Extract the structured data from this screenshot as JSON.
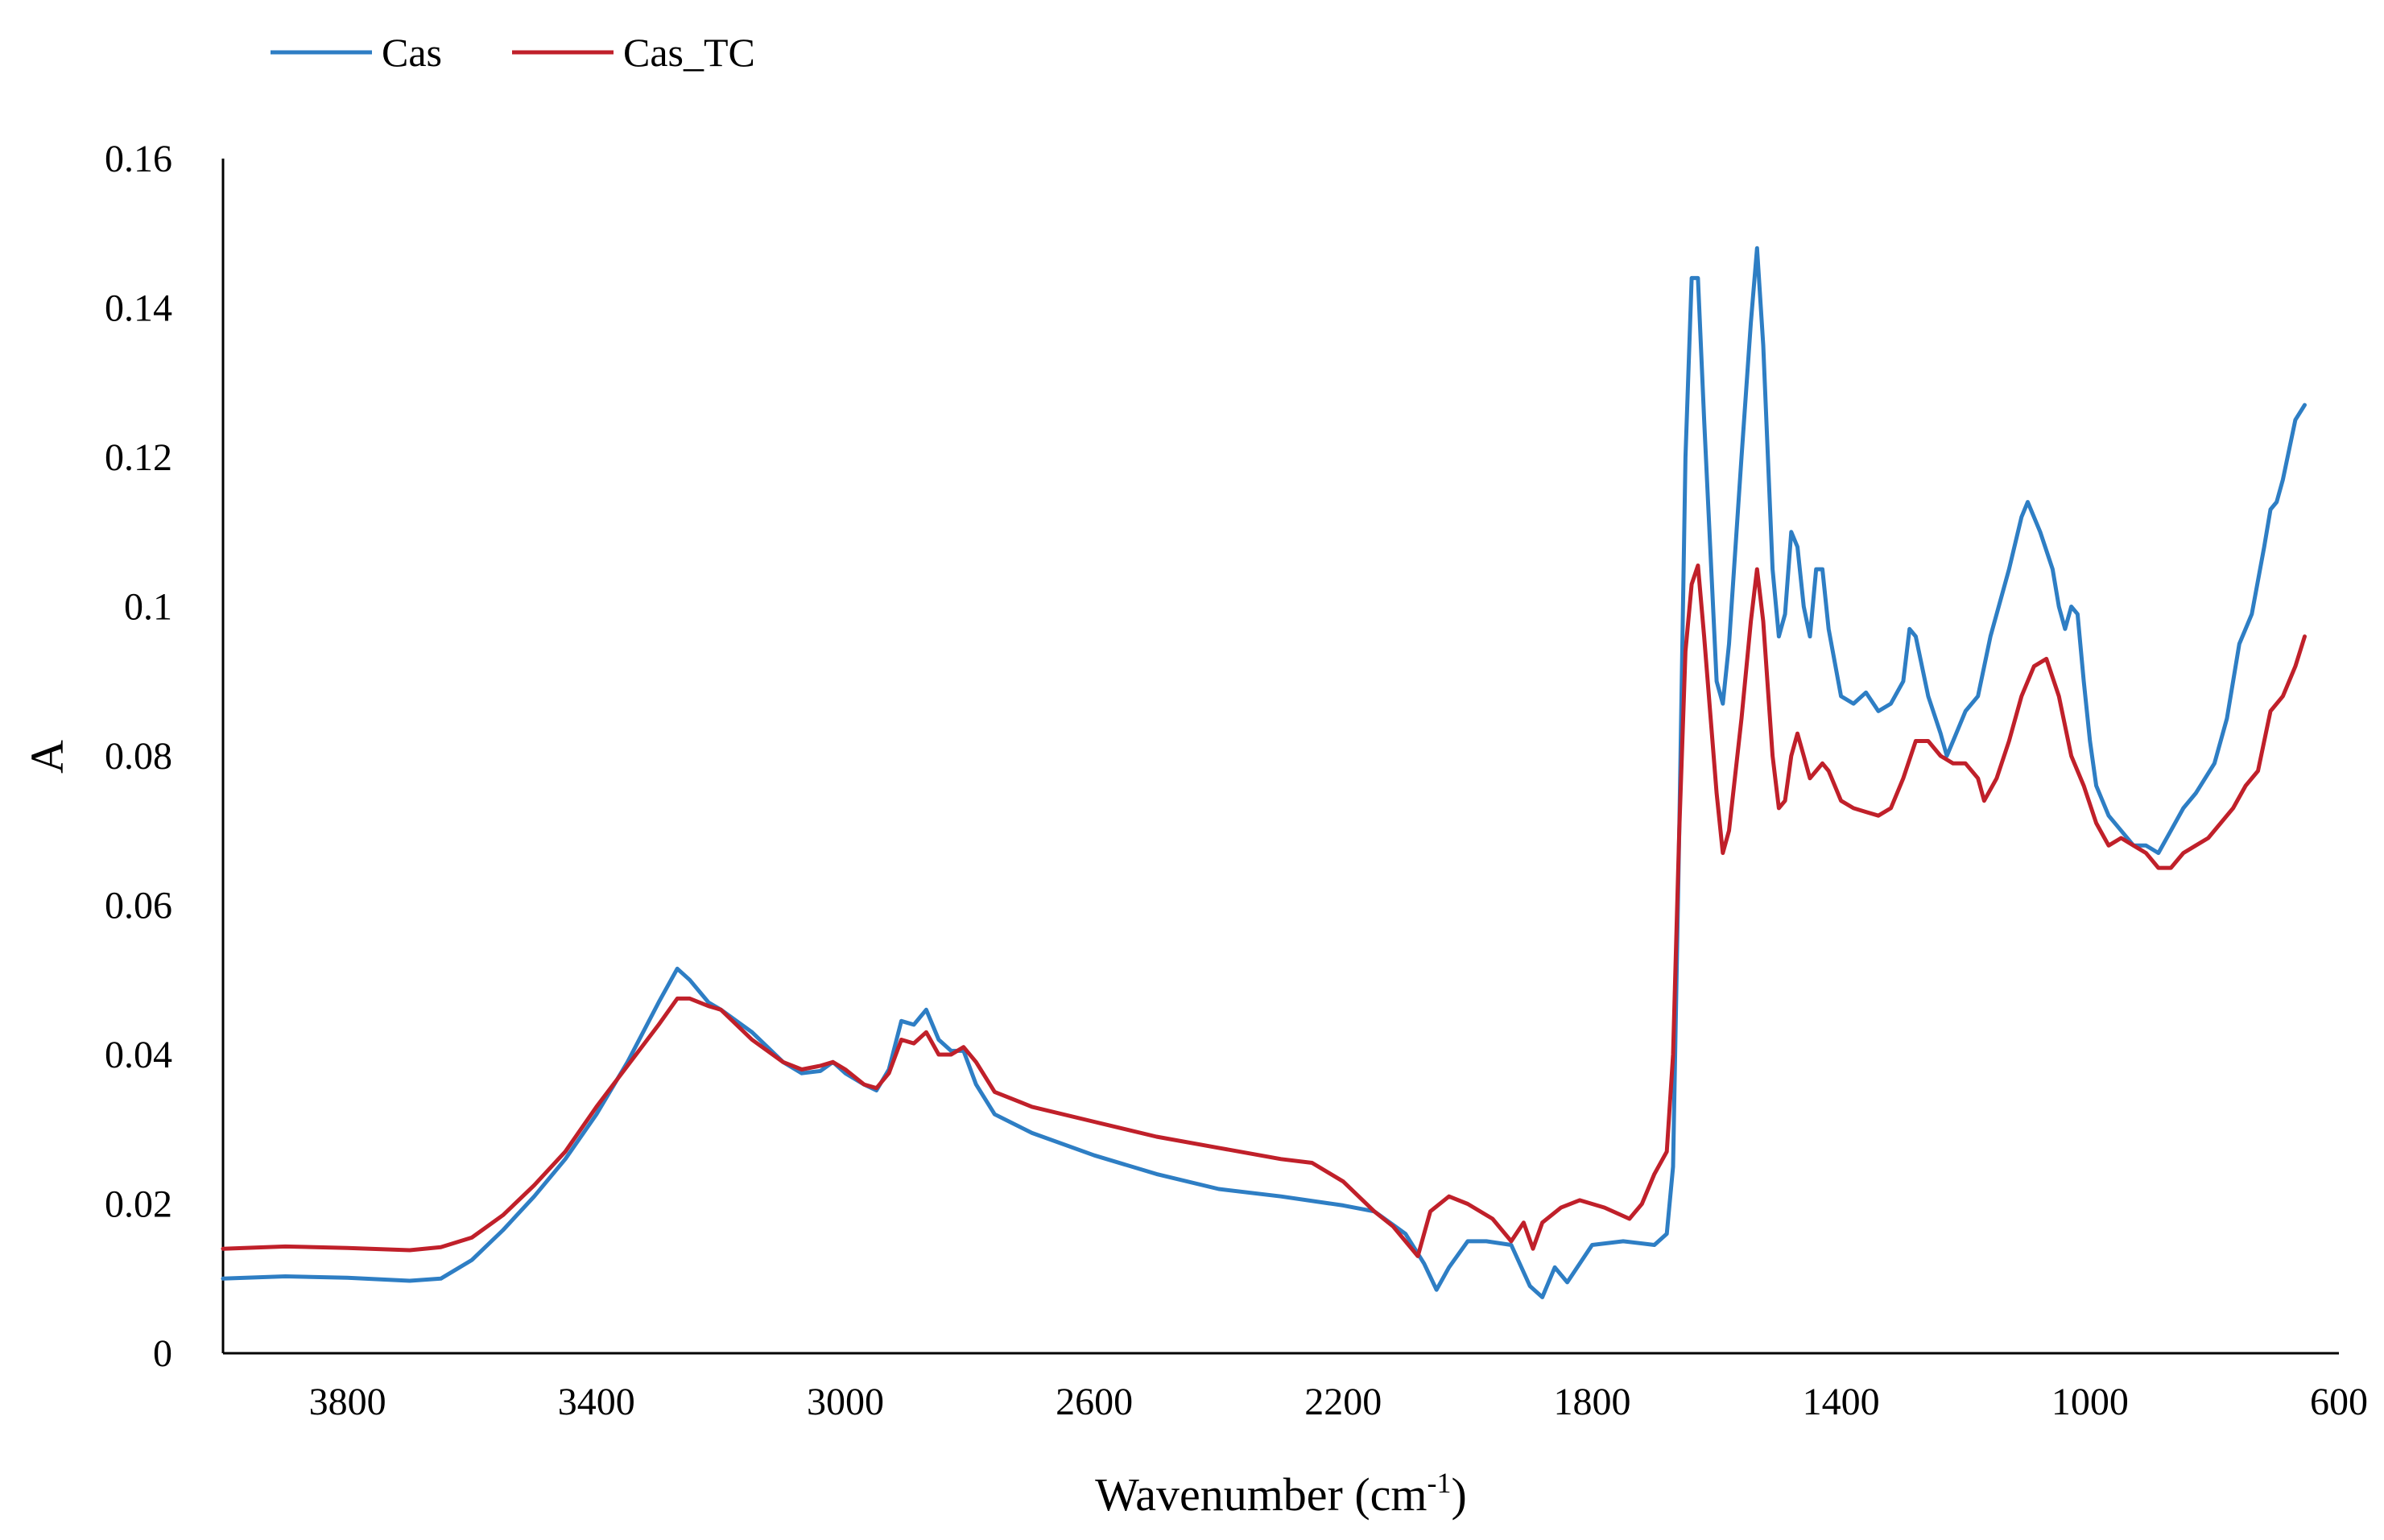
{
  "chart_data": {
    "type": "line",
    "title": "",
    "xlabel": "Wavenumber (cm",
    "xlabel_superscript": "-1",
    "xlabel_suffix": ")",
    "ylabel": "A",
    "xlim": [
      4000,
      600
    ],
    "x_reversed": true,
    "ylim": [
      0,
      0.16
    ],
    "x_ticks": [
      3800,
      3400,
      3000,
      2600,
      2200,
      1800,
      1400,
      1000,
      600
    ],
    "y_ticks": [
      0,
      0.02,
      0.04,
      0.06,
      0.08,
      0.1,
      0.12,
      0.14,
      0.16
    ],
    "y_tick_labels": [
      "0",
      "0.02",
      "0.04",
      "0.06",
      "0.08",
      "0.1",
      "0.12",
      "0.14",
      "0.16"
    ],
    "grid": false,
    "legend_position": "top-left",
    "series": [
      {
        "name": "Cas",
        "color": "#2e7ec4",
        "points": [
          [
            4000,
            0.01
          ],
          [
            3900,
            0.0103
          ],
          [
            3800,
            0.0101
          ],
          [
            3700,
            0.0097
          ],
          [
            3650,
            0.01
          ],
          [
            3600,
            0.0125
          ],
          [
            3550,
            0.0165
          ],
          [
            3500,
            0.021
          ],
          [
            3450,
            0.026
          ],
          [
            3400,
            0.032
          ],
          [
            3350,
            0.039
          ],
          [
            3300,
            0.047
          ],
          [
            3270,
            0.0515
          ],
          [
            3250,
            0.05
          ],
          [
            3220,
            0.047
          ],
          [
            3200,
            0.046
          ],
          [
            3150,
            0.043
          ],
          [
            3100,
            0.039
          ],
          [
            3070,
            0.0375
          ],
          [
            3040,
            0.0378
          ],
          [
            3020,
            0.039
          ],
          [
            3000,
            0.0375
          ],
          [
            2970,
            0.036
          ],
          [
            2950,
            0.0352
          ],
          [
            2930,
            0.038
          ],
          [
            2910,
            0.0445
          ],
          [
            2890,
            0.044
          ],
          [
            2870,
            0.046
          ],
          [
            2850,
            0.042
          ],
          [
            2830,
            0.0405
          ],
          [
            2810,
            0.0405
          ],
          [
            2790,
            0.036
          ],
          [
            2760,
            0.032
          ],
          [
            2700,
            0.0295
          ],
          [
            2600,
            0.0265
          ],
          [
            2500,
            0.024
          ],
          [
            2400,
            0.022
          ],
          [
            2300,
            0.021
          ],
          [
            2200,
            0.0198
          ],
          [
            2150,
            0.019
          ],
          [
            2100,
            0.016
          ],
          [
            2070,
            0.012
          ],
          [
            2050,
            0.0085
          ],
          [
            2030,
            0.0115
          ],
          [
            2000,
            0.015
          ],
          [
            1970,
            0.015
          ],
          [
            1930,
            0.0145
          ],
          [
            1900,
            0.009
          ],
          [
            1880,
            0.0075
          ],
          [
            1860,
            0.0115
          ],
          [
            1840,
            0.0095
          ],
          [
            1800,
            0.0145
          ],
          [
            1750,
            0.015
          ],
          [
            1700,
            0.0145
          ],
          [
            1680,
            0.016
          ],
          [
            1670,
            0.025
          ],
          [
            1660,
            0.07
          ],
          [
            1650,
            0.12
          ],
          [
            1640,
            0.144
          ],
          [
            1630,
            0.144
          ],
          [
            1620,
            0.125
          ],
          [
            1600,
            0.09
          ],
          [
            1590,
            0.087
          ],
          [
            1580,
            0.095
          ],
          [
            1560,
            0.12
          ],
          [
            1545,
            0.138
          ],
          [
            1535,
            0.148
          ],
          [
            1525,
            0.135
          ],
          [
            1510,
            0.105
          ],
          [
            1500,
            0.096
          ],
          [
            1490,
            0.099
          ],
          [
            1480,
            0.11
          ],
          [
            1470,
            0.108
          ],
          [
            1460,
            0.1
          ],
          [
            1450,
            0.096
          ],
          [
            1440,
            0.105
          ],
          [
            1430,
            0.105
          ],
          [
            1420,
            0.097
          ],
          [
            1400,
            0.088
          ],
          [
            1380,
            0.087
          ],
          [
            1360,
            0.0885
          ],
          [
            1340,
            0.086
          ],
          [
            1320,
            0.087
          ],
          [
            1300,
            0.09
          ],
          [
            1290,
            0.097
          ],
          [
            1280,
            0.096
          ],
          [
            1260,
            0.088
          ],
          [
            1240,
            0.083
          ],
          [
            1230,
            0.08
          ],
          [
            1220,
            0.082
          ],
          [
            1200,
            0.086
          ],
          [
            1180,
            0.088
          ],
          [
            1160,
            0.096
          ],
          [
            1130,
            0.105
          ],
          [
            1110,
            0.112
          ],
          [
            1100,
            0.114
          ],
          [
            1080,
            0.11
          ],
          [
            1060,
            0.105
          ],
          [
            1050,
            0.1
          ],
          [
            1040,
            0.097
          ],
          [
            1030,
            0.1
          ],
          [
            1020,
            0.099
          ],
          [
            1010,
            0.09
          ],
          [
            1000,
            0.082
          ],
          [
            990,
            0.076
          ],
          [
            970,
            0.072
          ],
          [
            950,
            0.07
          ],
          [
            930,
            0.068
          ],
          [
            910,
            0.068
          ],
          [
            890,
            0.067
          ],
          [
            870,
            0.07
          ],
          [
            850,
            0.073
          ],
          [
            830,
            0.075
          ],
          [
            800,
            0.079
          ],
          [
            780,
            0.085
          ],
          [
            760,
            0.095
          ],
          [
            740,
            0.099
          ],
          [
            720,
            0.108
          ],
          [
            710,
            0.113
          ],
          [
            700,
            0.114
          ],
          [
            690,
            0.117
          ],
          [
            670,
            0.125
          ],
          [
            655,
            0.127
          ]
        ]
      },
      {
        "name": "Cas_TC",
        "color": "#c0202a",
        "points": [
          [
            4000,
            0.014
          ],
          [
            3900,
            0.0143
          ],
          [
            3800,
            0.0141
          ],
          [
            3700,
            0.0138
          ],
          [
            3650,
            0.0142
          ],
          [
            3600,
            0.0155
          ],
          [
            3550,
            0.0185
          ],
          [
            3500,
            0.0225
          ],
          [
            3450,
            0.027
          ],
          [
            3400,
            0.033
          ],
          [
            3350,
            0.0385
          ],
          [
            3300,
            0.044
          ],
          [
            3270,
            0.0475
          ],
          [
            3250,
            0.0475
          ],
          [
            3220,
            0.0465
          ],
          [
            3200,
            0.046
          ],
          [
            3150,
            0.042
          ],
          [
            3100,
            0.039
          ],
          [
            3070,
            0.038
          ],
          [
            3040,
            0.0385
          ],
          [
            3020,
            0.039
          ],
          [
            3000,
            0.038
          ],
          [
            2970,
            0.036
          ],
          [
            2950,
            0.0355
          ],
          [
            2930,
            0.0375
          ],
          [
            2910,
            0.042
          ],
          [
            2890,
            0.0415
          ],
          [
            2870,
            0.043
          ],
          [
            2850,
            0.04
          ],
          [
            2830,
            0.04
          ],
          [
            2810,
            0.041
          ],
          [
            2790,
            0.039
          ],
          [
            2760,
            0.035
          ],
          [
            2700,
            0.033
          ],
          [
            2600,
            0.031
          ],
          [
            2500,
            0.029
          ],
          [
            2400,
            0.0275
          ],
          [
            2300,
            0.026
          ],
          [
            2250,
            0.0255
          ],
          [
            2200,
            0.023
          ],
          [
            2150,
            0.019
          ],
          [
            2120,
            0.017
          ],
          [
            2100,
            0.015
          ],
          [
            2080,
            0.013
          ],
          [
            2060,
            0.019
          ],
          [
            2030,
            0.021
          ],
          [
            2000,
            0.02
          ],
          [
            1960,
            0.018
          ],
          [
            1930,
            0.015
          ],
          [
            1910,
            0.0175
          ],
          [
            1895,
            0.014
          ],
          [
            1880,
            0.0175
          ],
          [
            1850,
            0.0195
          ],
          [
            1820,
            0.0205
          ],
          [
            1780,
            0.0195
          ],
          [
            1740,
            0.018
          ],
          [
            1720,
            0.02
          ],
          [
            1700,
            0.024
          ],
          [
            1680,
            0.027
          ],
          [
            1670,
            0.04
          ],
          [
            1660,
            0.07
          ],
          [
            1650,
            0.094
          ],
          [
            1640,
            0.103
          ],
          [
            1630,
            0.1055
          ],
          [
            1620,
            0.096
          ],
          [
            1600,
            0.075
          ],
          [
            1590,
            0.067
          ],
          [
            1580,
            0.07
          ],
          [
            1560,
            0.085
          ],
          [
            1545,
            0.098
          ],
          [
            1535,
            0.105
          ],
          [
            1525,
            0.098
          ],
          [
            1510,
            0.08
          ],
          [
            1500,
            0.073
          ],
          [
            1490,
            0.074
          ],
          [
            1480,
            0.08
          ],
          [
            1470,
            0.083
          ],
          [
            1460,
            0.08
          ],
          [
            1450,
            0.077
          ],
          [
            1440,
            0.078
          ],
          [
            1430,
            0.079
          ],
          [
            1420,
            0.078
          ],
          [
            1400,
            0.074
          ],
          [
            1380,
            0.073
          ],
          [
            1360,
            0.0725
          ],
          [
            1340,
            0.072
          ],
          [
            1320,
            0.073
          ],
          [
            1300,
            0.077
          ],
          [
            1280,
            0.082
          ],
          [
            1260,
            0.082
          ],
          [
            1240,
            0.08
          ],
          [
            1220,
            0.079
          ],
          [
            1200,
            0.079
          ],
          [
            1180,
            0.077
          ],
          [
            1170,
            0.074
          ],
          [
            1150,
            0.077
          ],
          [
            1130,
            0.082
          ],
          [
            1110,
            0.088
          ],
          [
            1090,
            0.092
          ],
          [
            1070,
            0.093
          ],
          [
            1050,
            0.088
          ],
          [
            1030,
            0.08
          ],
          [
            1010,
            0.076
          ],
          [
            990,
            0.071
          ],
          [
            970,
            0.068
          ],
          [
            950,
            0.069
          ],
          [
            930,
            0.068
          ],
          [
            910,
            0.067
          ],
          [
            890,
            0.065
          ],
          [
            870,
            0.065
          ],
          [
            850,
            0.067
          ],
          [
            830,
            0.068
          ],
          [
            810,
            0.069
          ],
          [
            790,
            0.071
          ],
          [
            770,
            0.073
          ],
          [
            750,
            0.076
          ],
          [
            730,
            0.078
          ],
          [
            710,
            0.086
          ],
          [
            690,
            0.088
          ],
          [
            670,
            0.092
          ],
          [
            655,
            0.096
          ]
        ]
      }
    ]
  }
}
